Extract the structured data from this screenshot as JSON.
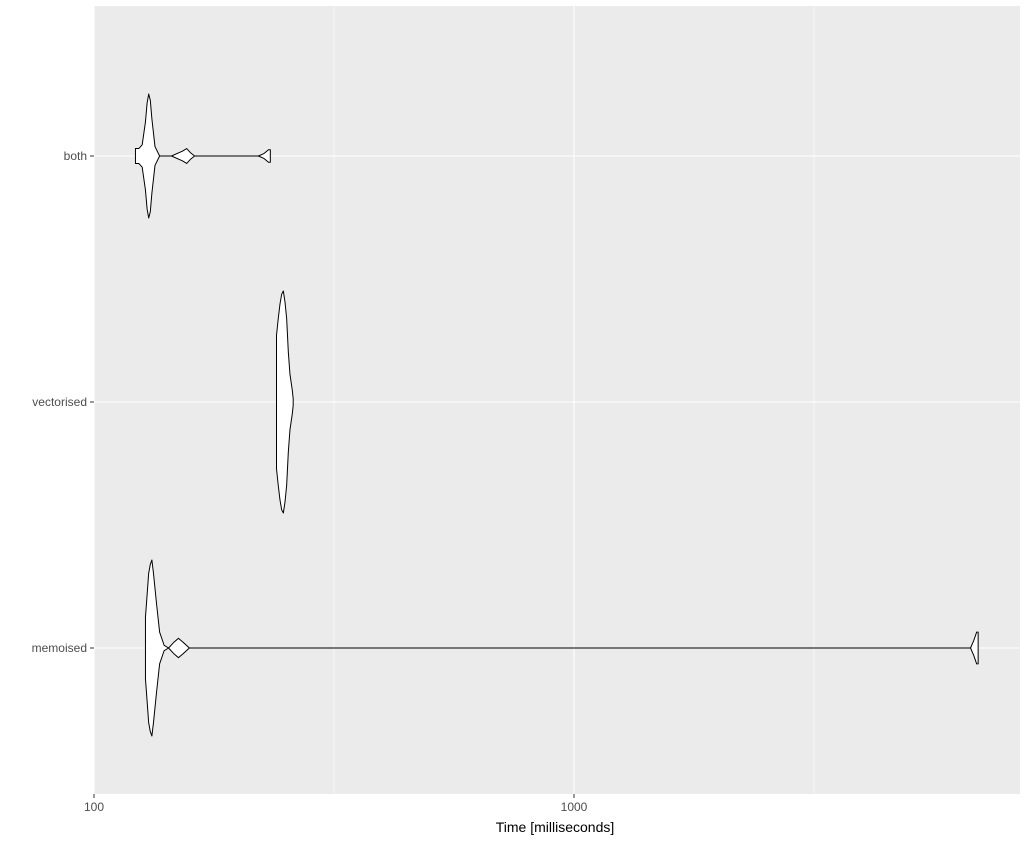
{
  "chart_data": {
    "type": "violin",
    "orientation": "horizontal",
    "xlabel": "Time [milliseconds]",
    "ylabel": "",
    "x_scale": "log10",
    "xlim": [
      100,
      8600
    ],
    "x_ticks": [
      {
        "value": 100,
        "label": "100"
      },
      {
        "value": 1000,
        "label": "1000"
      }
    ],
    "x_minor_gridlines": [
      316.23,
      3162.3
    ],
    "grid": true,
    "panel_background": "#ebebeb",
    "gridline_color": "#ffffff",
    "violin_fill": "#ffffff",
    "violin_stroke": "#000000",
    "categories": [
      "both",
      "vectorised",
      "memoised"
    ],
    "series": [
      {
        "name": "both",
        "min": 122,
        "max": 233,
        "mode": 130,
        "density": [
          [
            122,
            0.12
          ],
          [
            124,
            0.12
          ],
          [
            126,
            0.18
          ],
          [
            128,
            0.55
          ],
          [
            129,
            0.85
          ],
          [
            130,
            1.0
          ],
          [
            131,
            0.9
          ],
          [
            132,
            0.6
          ],
          [
            134,
            0.15
          ],
          [
            137,
            0.0
          ],
          [
            145,
            0.0
          ],
          [
            153,
            0.08
          ],
          [
            156,
            0.12
          ],
          [
            159,
            0.05
          ],
          [
            162,
            0.0
          ],
          [
            220,
            0.0
          ],
          [
            226,
            0.04
          ],
          [
            231,
            0.1
          ],
          [
            233,
            0.1
          ]
        ]
      },
      {
        "name": "vectorised",
        "min": 240,
        "max": 260,
        "mode": 248,
        "density": [
          [
            240,
            0.6
          ],
          [
            242,
            0.75
          ],
          [
            244,
            0.88
          ],
          [
            246,
            0.97
          ],
          [
            248,
            1.0
          ],
          [
            250,
            0.9
          ],
          [
            252,
            0.75
          ],
          [
            254,
            0.45
          ],
          [
            256,
            0.25
          ],
          [
            258,
            0.15
          ],
          [
            259,
            0.1
          ],
          [
            260,
            0.03
          ]
        ]
      },
      {
        "name": "memoised",
        "min": 128,
        "max": 6950,
        "mode": 132,
        "density": [
          [
            128,
            0.35
          ],
          [
            129,
            0.6
          ],
          [
            130,
            0.85
          ],
          [
            131,
            0.95
          ],
          [
            132,
            1.0
          ],
          [
            133,
            0.85
          ],
          [
            135,
            0.5
          ],
          [
            137,
            0.18
          ],
          [
            140,
            0.03
          ],
          [
            143,
            0.0
          ],
          [
            147,
            0.07
          ],
          [
            150,
            0.11
          ],
          [
            153,
            0.07
          ],
          [
            158,
            0.0
          ],
          [
            6700,
            0.0
          ],
          [
            6800,
            0.08
          ],
          [
            6900,
            0.18
          ],
          [
            6950,
            0.18
          ]
        ]
      }
    ]
  }
}
